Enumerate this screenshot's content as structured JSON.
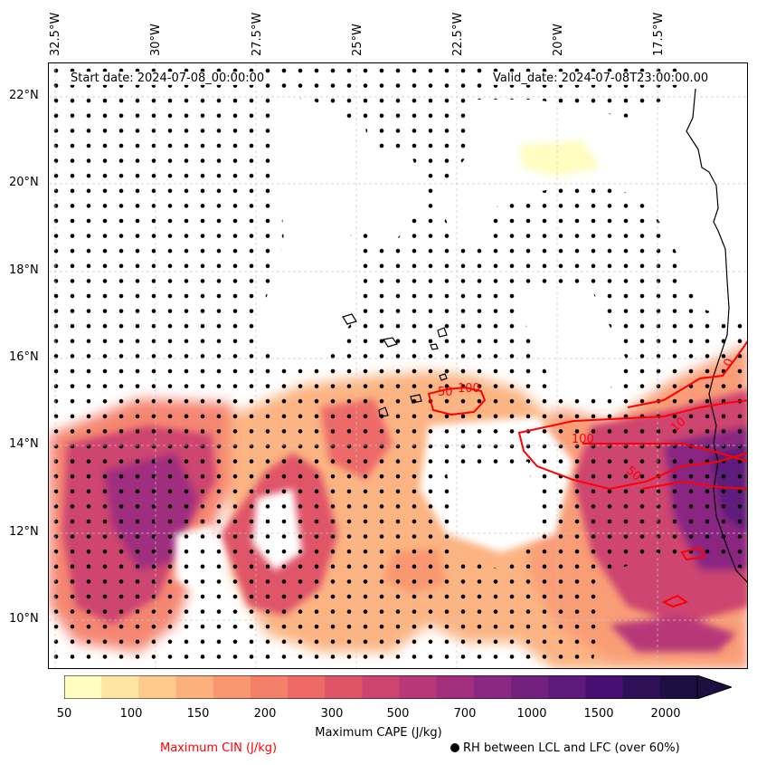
{
  "map": {
    "start_label": "Start date: 2024-07-08_00:00:00",
    "valid_label": "Valid_date: 2024-07-08T23:00:00.00",
    "lon_ticks": [
      "32.5°W",
      "30°W",
      "27.5°W",
      "25°W",
      "22.5°W",
      "20°W",
      "17.5°W"
    ],
    "lat_ticks": [
      "22°N",
      "20°N",
      "18°N",
      "16°N",
      "14°N",
      "12°N",
      "10°N"
    ],
    "extent": {
      "lon_min": -32.6,
      "lon_max": -15.3,
      "lat_min": 8.9,
      "lat_max": 22.8
    },
    "cin_contour_labels": [
      "50",
      "100",
      "100",
      "50",
      "0",
      "10"
    ]
  },
  "colorbar": {
    "title": "Maximum CAPE (J/kg)",
    "ticks": [
      "50",
      "100",
      "150",
      "200",
      "300",
      "500",
      "700",
      "1000",
      "1500",
      "2000"
    ],
    "colors": [
      "#fffdbf",
      "#fee5a4",
      "#fecb8c",
      "#fcb07c",
      "#f99870",
      "#f5806a",
      "#ed6a67",
      "#e05468",
      "#cd4470",
      "#b73779",
      "#a02f7e",
      "#8a2882",
      "#73217f",
      "#5e1a7b",
      "#451071",
      "#2d1056",
      "#1d1040",
      "#1d1040"
    ],
    "extend": "max"
  },
  "legend": {
    "cin_label": "Maximum CIN (J/kg)",
    "rh_label": "RH between LCL and LFC (over 60%)",
    "cin_color": "#ff0000"
  }
}
